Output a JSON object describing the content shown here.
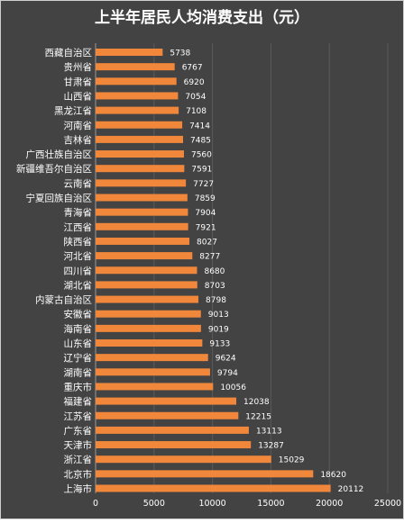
{
  "chart_data": {
    "type": "bar",
    "orientation": "horizontal",
    "title": "上半年居民人均消费支出（元）",
    "xlabel": "",
    "ylabel": "",
    "xlim": [
      0,
      25000
    ],
    "x_ticks": [
      "0",
      "5000",
      "10000",
      "15000",
      "20000",
      "25000"
    ],
    "grid": "vertical",
    "legend": "none",
    "colors": {
      "background": "#434343",
      "plot_background": "#434343",
      "bar": "#f0873a",
      "text": "#ffffff",
      "title": "#ffffff",
      "grid": "#5a5a5a",
      "axis": "#9a9a9a"
    },
    "categories": [
      "西藏自治区",
      "贵州省",
      "甘肃省",
      "山西省",
      "黑龙江省",
      "河南省",
      "吉林省",
      "广西壮族自治区",
      "新疆维吾尔自治区",
      "云南省",
      "宁夏回族自治区",
      "青海省",
      "江西省",
      "陕西省",
      "河北省",
      "四川省",
      "湖北省",
      "内蒙古自治区",
      "安徽省",
      "海南省",
      "山东省",
      "辽宁省",
      "湖南省",
      "重庆市",
      "福建省",
      "江苏省",
      "广东省",
      "天津市",
      "浙江省",
      "北京市",
      "上海市"
    ],
    "values": [
      5738,
      6767,
      6920,
      7054,
      7108,
      7414,
      7485,
      7560,
      7591,
      7727,
      7859,
      7904,
      7921,
      8027,
      8277,
      8680,
      8703,
      8798,
      9013,
      9019,
      9133,
      9624,
      9794,
      10056,
      12038,
      12215,
      13113,
      13287,
      15029,
      18620,
      20112
    ],
    "data_labels": [
      "5738",
      "6767",
      "6920",
      "7054",
      "7108",
      "7414",
      "7485",
      "7560",
      "7591",
      "7727",
      "7859",
      "7904",
      "7921",
      "8027",
      "8277",
      "8680",
      "8703",
      "8798",
      "9013",
      "9019",
      "9133",
      "9624",
      "9794",
      "10056",
      "12038",
      "12215",
      "13113",
      "13287",
      "15029",
      "18620",
      "20112"
    ]
  }
}
